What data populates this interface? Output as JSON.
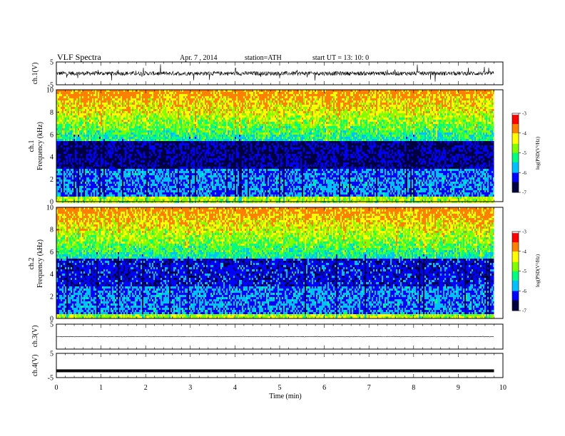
{
  "header": {
    "title": "VLF Spectra",
    "date": "Apr. 7 , 2014",
    "station": "station=ATH",
    "start": "start UT = 13: 10: 0"
  },
  "chart_data": [
    {
      "type": "line",
      "id": "ch1-waveform",
      "ylabel": "ch.1(V)",
      "ylim": [
        -5,
        5
      ],
      "y_ticks": [
        "5",
        "-5"
      ],
      "xlim": [
        0,
        10
      ],
      "data_extent_min": 9.8,
      "baseline": 0,
      "description_values": {
        "envelope": 1.5
      }
    },
    {
      "type": "heatmap",
      "id": "ch1-spectrogram",
      "ylabel": "ch.1\nFrequency (kHz)",
      "ylabel_line1": "ch.1",
      "ylabel_line2": "Frequency (kHz)",
      "ylim": [
        0,
        10
      ],
      "y_ticks": [
        "0",
        "2",
        "4",
        "6",
        "8",
        "10"
      ],
      "xlim": [
        0,
        10
      ],
      "colorbar": {
        "label": "log(PSD(V²/Hz)",
        "range": [
          -7,
          -3
        ],
        "ticks": [
          "-3",
          "-4",
          "-5",
          "-6",
          "-7"
        ],
        "colors": [
          "#000040",
          "#0000ff",
          "#00c0ff",
          "#00ff80",
          "#80ff00",
          "#ffff00",
          "#ff8000",
          "#ff0000",
          "#ffffff"
        ]
      }
    },
    {
      "type": "heatmap",
      "id": "ch2-spectrogram",
      "ylabel_line1": "ch.2",
      "ylabel_line2": "Frequency (kHz)",
      "ylim": [
        0,
        10
      ],
      "y_ticks": [
        "0",
        "2",
        "4",
        "6",
        "8",
        "10"
      ],
      "xlim": [
        0,
        10
      ],
      "colorbar": {
        "label": "log(PSD(V²/Hz)",
        "range": [
          -7,
          -3
        ],
        "ticks": [
          "-3",
          "-4",
          "-5",
          "-6",
          "-7"
        ]
      }
    },
    {
      "type": "line",
      "id": "ch3-waveform",
      "ylabel": "ch.3(V)",
      "ylim": [
        -5,
        5
      ],
      "y_ticks": [
        "5"
      ],
      "xlim": [
        0,
        10
      ],
      "baseline": 0
    },
    {
      "type": "line",
      "id": "ch4-waveform",
      "ylabel": "ch.4(V)",
      "ylim": [
        -5,
        5
      ],
      "y_ticks": [
        "5",
        "-5"
      ],
      "xlim": [
        0,
        10
      ],
      "baseline": -2.2
    }
  ],
  "x_axis": {
    "label": "Time (min)",
    "ticks": [
      "0",
      "1",
      "2",
      "3",
      "4",
      "5",
      "6",
      "7",
      "8",
      "9",
      "10"
    ]
  }
}
